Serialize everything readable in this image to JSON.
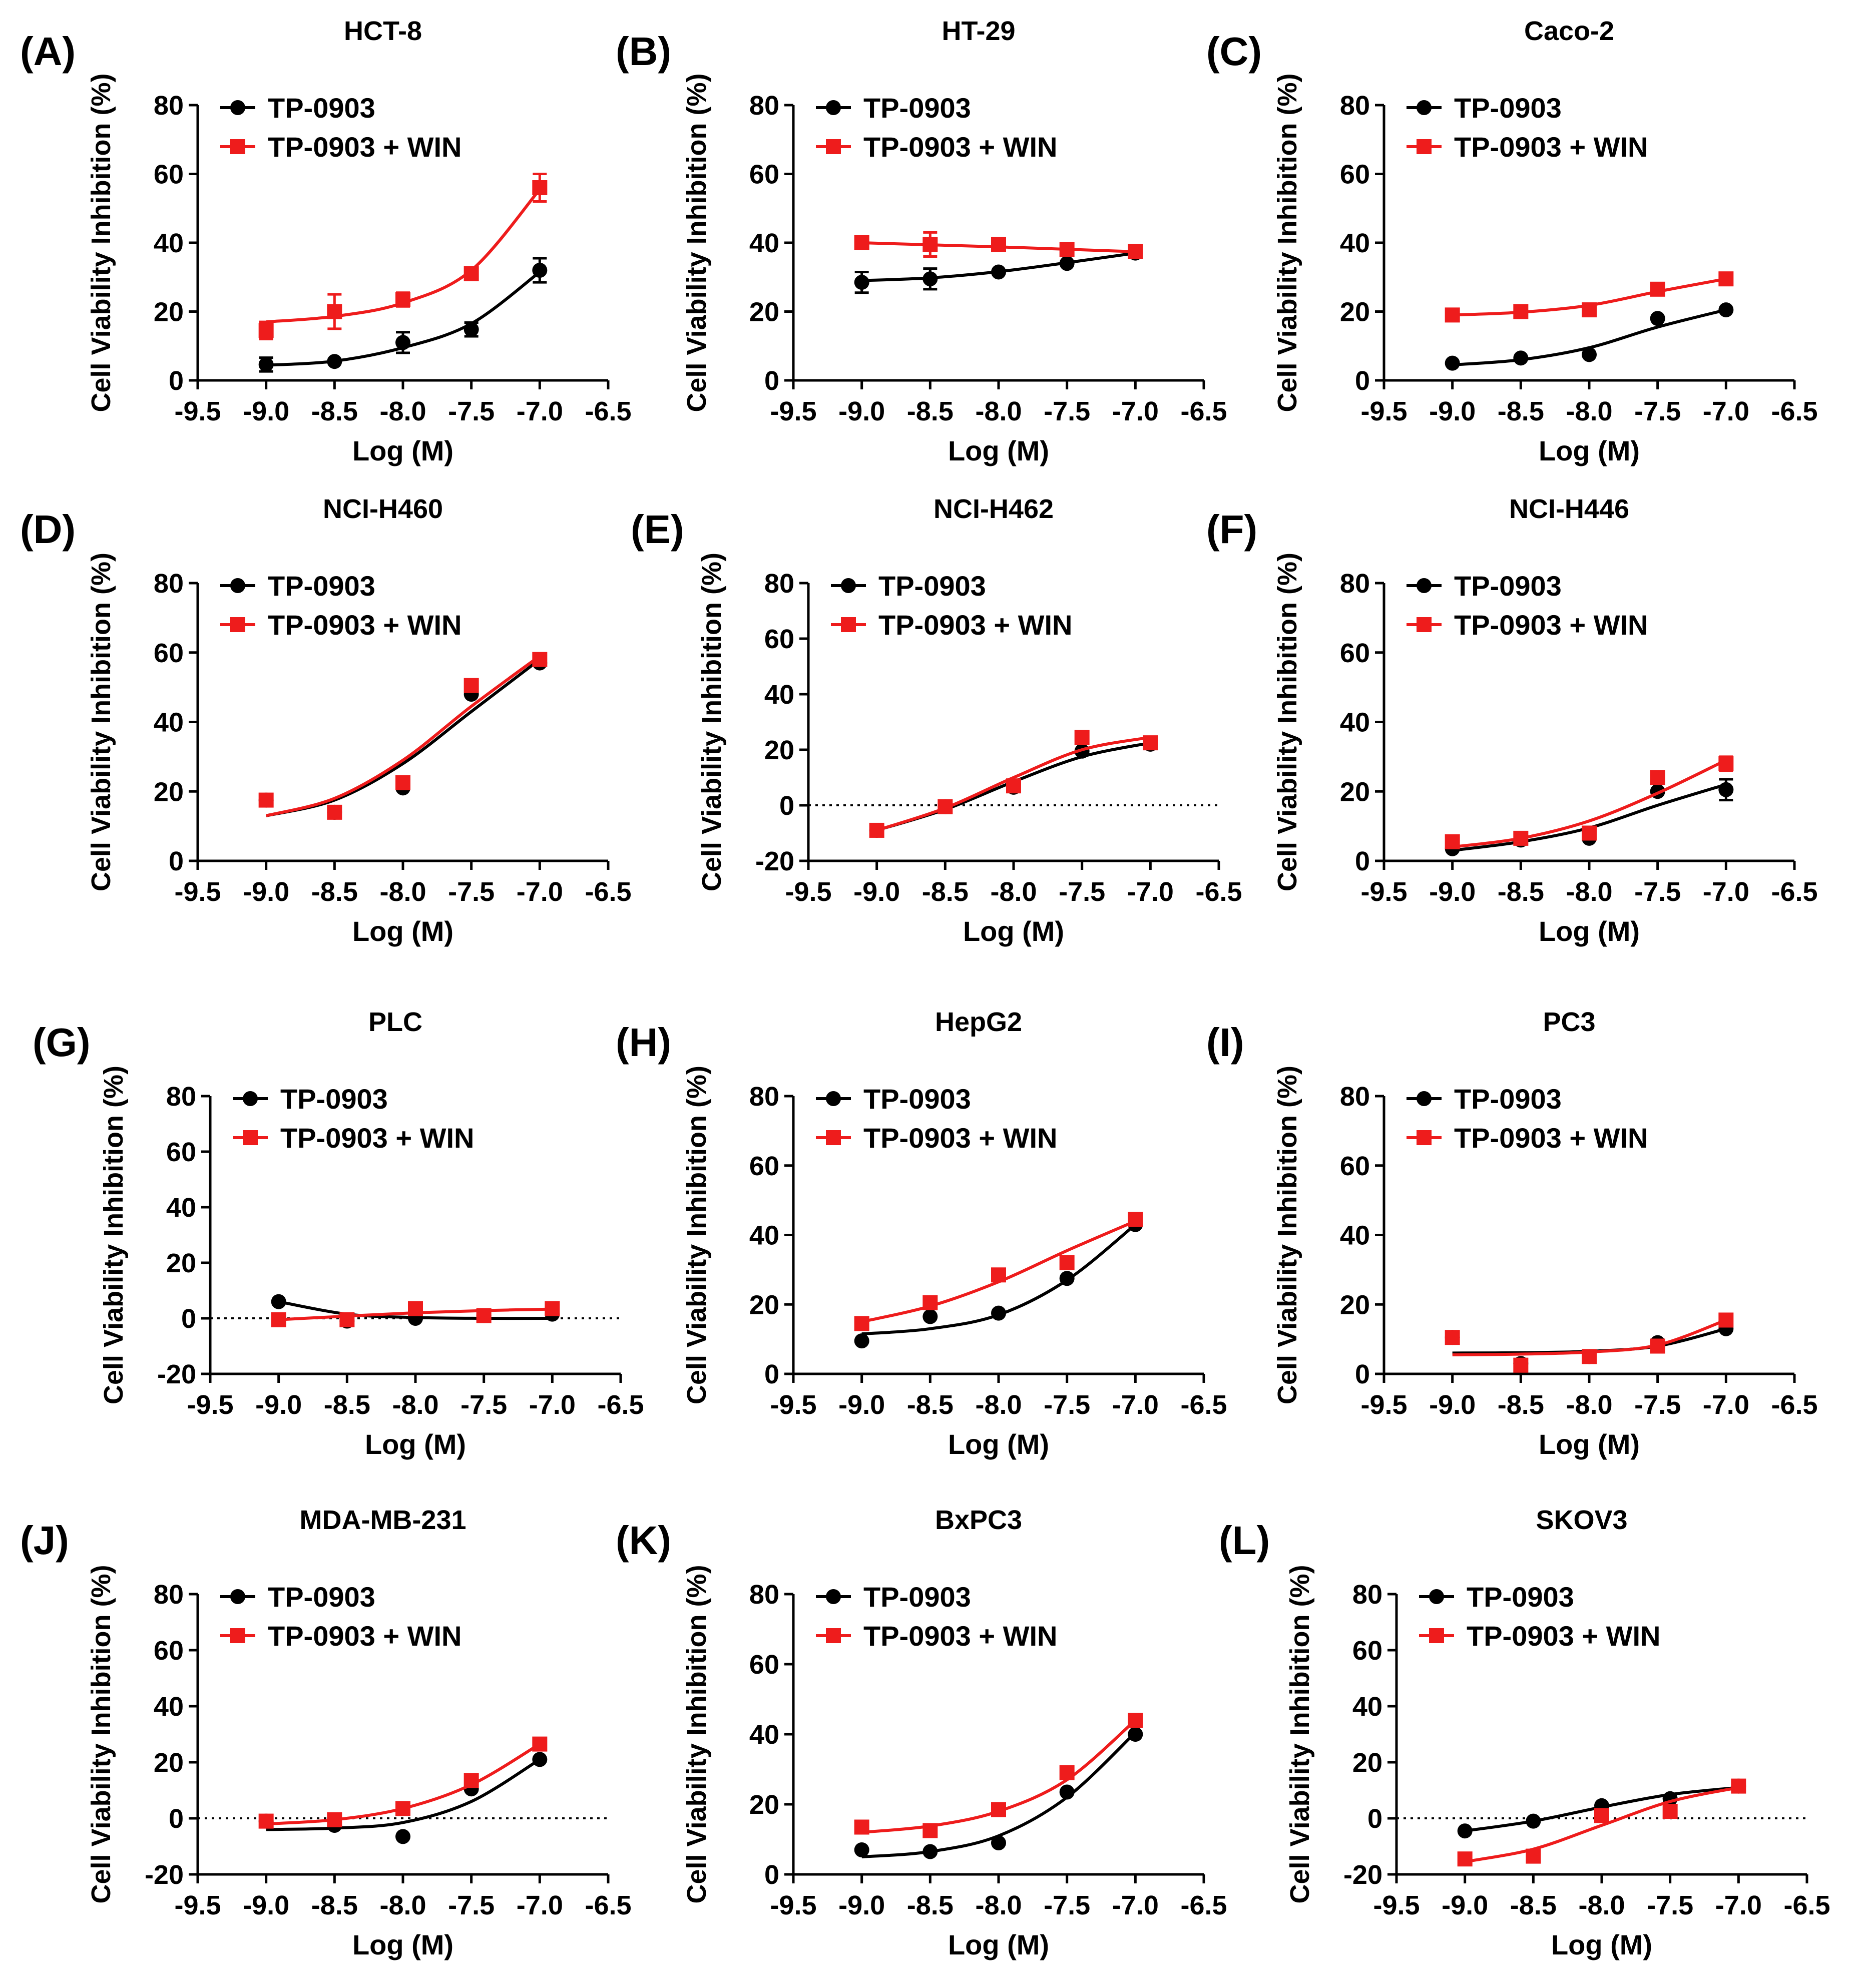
{
  "figure": {
    "x_axis_label": "Log (M)",
    "y_axis_label": "Cell Viability Inhibition (%)"
  },
  "colors": {
    "control": "#000000",
    "win": "#ee1c1c"
  },
  "chart_data": [
    {
      "type": "scatter",
      "panel_label": "(A)",
      "title": "HCT-8",
      "xlabel": "Log (M)",
      "ylabel": "Cell Viability Inhibition (%)",
      "xlim": [
        -9.5,
        -6.5
      ],
      "ylim": [
        0,
        80
      ],
      "xticks": [
        "-9.5",
        "-9.0",
        "-8.5",
        "-8.0",
        "-7.5",
        "-7.0",
        "-6.5"
      ],
      "yticks": [
        "0",
        "20",
        "40",
        "60",
        "80"
      ],
      "x": [
        -9.0,
        -8.5,
        -8.0,
        -7.5,
        -7.0
      ],
      "series": [
        {
          "name": "TP-0903",
          "values": [
            4.6,
            5.5,
            11,
            14.8,
            32
          ],
          "errors": [
            2,
            0.5,
            3,
            2,
            3.5
          ],
          "fit": [
            4.4,
            5.6,
            9.5,
            16.5,
            31.5
          ]
        },
        {
          "name": "TP-0903 + WIN",
          "values": [
            14.5,
            20,
            23.5,
            31,
            56
          ],
          "errors": [
            2.5,
            5,
            2,
            1.5,
            4
          ],
          "fit": [
            17,
            18.6,
            22.5,
            32,
            55.5
          ]
        }
      ],
      "zero_line": false,
      "legend_position": "top-left"
    },
    {
      "type": "scatter",
      "panel_label": "(B)",
      "title": "HT-29",
      "xlabel": "Log (M)",
      "ylabel": "Cell Viability Inhibition (%)",
      "xlim": [
        -9.5,
        -6.5
      ],
      "ylim": [
        0,
        80
      ],
      "xticks": [
        "-9.5",
        "-9.0",
        "-8.5",
        "-8.0",
        "-7.5",
        "-7.0",
        "-6.5"
      ],
      "yticks": [
        "0",
        "20",
        "40",
        "60",
        "80"
      ],
      "x": [
        -9.0,
        -8.5,
        -8.0,
        -7.5,
        -7.0
      ],
      "series": [
        {
          "name": "TP-0903",
          "values": [
            28.5,
            29.5,
            31.5,
            34,
            37
          ],
          "errors": [
            3,
            3,
            1,
            1,
            1
          ],
          "fit": [
            29,
            29.8,
            31.6,
            34.2,
            37
          ]
        },
        {
          "name": "TP-0903 + WIN",
          "values": [
            40,
            39.5,
            39.5,
            38,
            37.5
          ],
          "errors": [
            1,
            3.5,
            1,
            1,
            1
          ],
          "fit": [
            40,
            39.4,
            38.8,
            38.1,
            37.4
          ]
        }
      ],
      "zero_line": false,
      "legend_position": "top-left"
    },
    {
      "type": "scatter",
      "panel_label": "(C)",
      "title": "Caco-2",
      "xlabel": "Log (M)",
      "ylabel": "Cell Viability Inhibition (%)",
      "xlim": [
        -9.5,
        -6.5
      ],
      "ylim": [
        0,
        80
      ],
      "xticks": [
        "-9.5",
        "-9.0",
        "-8.5",
        "-8.0",
        "-7.5",
        "-7.0",
        "-6.5"
      ],
      "yticks": [
        "0",
        "20",
        "40",
        "60",
        "80"
      ],
      "x": [
        -9.0,
        -8.5,
        -8.0,
        -7.5,
        -7.0
      ],
      "series": [
        {
          "name": "TP-0903",
          "values": [
            5,
            6.5,
            7.5,
            18,
            20.5
          ],
          "errors": [
            0.5,
            0.5,
            0.5,
            0.8,
            0.8
          ],
          "fit": [
            4.5,
            6,
            9.5,
            15.5,
            20.5
          ]
        },
        {
          "name": "TP-0903 + WIN",
          "values": [
            19,
            20,
            20.5,
            26.5,
            29.5
          ],
          "errors": [
            0.5,
            0.5,
            0.5,
            0.8,
            0.8
          ],
          "fit": [
            19,
            19.8,
            21.8,
            25.8,
            29.5
          ]
        }
      ],
      "zero_line": false,
      "legend_position": "top-left"
    },
    {
      "type": "scatter",
      "panel_label": "(D)",
      "title": "NCI-H460",
      "xlabel": "Log (M)",
      "ylabel": "Cell Viability Inhibition (%)",
      "xlim": [
        -9.5,
        -6.5
      ],
      "ylim": [
        0,
        80
      ],
      "xticks": [
        "-9.5",
        "-9.0",
        "-8.5",
        "-8.0",
        "-7.5",
        "-7.0",
        "-6.5"
      ],
      "yticks": [
        "0",
        "20",
        "40",
        "60",
        "80"
      ],
      "x": [
        -9.0,
        -8.5,
        -8.0,
        -7.5,
        -7.0
      ],
      "series": [
        {
          "name": "TP-0903",
          "values": [
            17.5,
            14,
            21,
            48,
            57
          ],
          "errors": [
            1,
            1,
            1,
            1,
            1
          ],
          "fit": [
            13,
            17.5,
            28,
            43,
            58
          ]
        },
        {
          "name": "TP-0903 + WIN",
          "values": [
            17.5,
            14,
            22.5,
            50.5,
            58
          ],
          "errors": [
            1,
            1,
            1,
            1,
            1
          ],
          "fit": [
            13,
            18,
            29,
            44.5,
            59
          ]
        }
      ],
      "zero_line": false,
      "legend_position": "top-left"
    },
    {
      "type": "scatter",
      "panel_label": "(E)",
      "title": "NCI-H462",
      "xlabel": "Log (M)",
      "ylabel": "Cell Viability Inhibition (%)",
      "xlim": [
        -9.5,
        -6.5
      ],
      "ylim": [
        -20,
        80
      ],
      "xticks": [
        "-9.5",
        "-9.0",
        "-8.5",
        "-8.0",
        "-7.5",
        "-7.0",
        "-6.5"
      ],
      "yticks": [
        "-20",
        "0",
        "20",
        "40",
        "60",
        "80"
      ],
      "x": [
        -9.0,
        -8.5,
        -8.0,
        -7.5,
        -7.0
      ],
      "series": [
        {
          "name": "TP-0903",
          "values": [
            -9,
            -0.5,
            6.5,
            19.5,
            22
          ],
          "errors": [
            1,
            1,
            1,
            1,
            1
          ],
          "fit": [
            -9,
            -1.5,
            8.5,
            17.5,
            22.5
          ]
        },
        {
          "name": "TP-0903 + WIN",
          "values": [
            -9,
            -0.5,
            7,
            24.5,
            22.5
          ],
          "errors": [
            1,
            1,
            1,
            1,
            1
          ],
          "fit": [
            -9,
            -1,
            10,
            20,
            24.5
          ]
        }
      ],
      "zero_line": true,
      "legend_position": "top-left"
    },
    {
      "type": "scatter",
      "panel_label": "(F)",
      "title": "NCI-H446",
      "xlabel": "Log (M)",
      "ylabel": "Cell Viability Inhibition (%)",
      "xlim": [
        -9.5,
        -6.5
      ],
      "ylim": [
        0,
        80
      ],
      "xticks": [
        "-9.5",
        "-9.0",
        "-8.5",
        "-8.0",
        "-7.5",
        "-7.0",
        "-6.5"
      ],
      "yticks": [
        "0",
        "20",
        "40",
        "60",
        "80"
      ],
      "x": [
        -9.0,
        -8.5,
        -8.0,
        -7.5,
        -7.0
      ],
      "series": [
        {
          "name": "TP-0903",
          "values": [
            3.5,
            6,
            6.5,
            20,
            20.5
          ],
          "errors": [
            1,
            1,
            1,
            1,
            3
          ],
          "fit": [
            3,
            5.5,
            9.5,
            16,
            22
          ]
        },
        {
          "name": "TP-0903 + WIN",
          "values": [
            5.5,
            6.5,
            8,
            24,
            28
          ],
          "errors": [
            1,
            1,
            1,
            1,
            2
          ],
          "fit": [
            4,
            6.5,
            11.5,
            19.5,
            29
          ]
        }
      ],
      "zero_line": false,
      "legend_position": "top-left"
    },
    {
      "type": "scatter",
      "panel_label": "(G)",
      "title": "PLC",
      "xlabel": "Log (M)",
      "ylabel": "Cell Viability Inhibition (%)",
      "xlim": [
        -9.5,
        -6.5
      ],
      "ylim": [
        -20,
        80
      ],
      "xticks": [
        "-9.5",
        "-9.0",
        "-8.5",
        "-8.0",
        "-7.5",
        "-7.0",
        "-6.5"
      ],
      "yticks": [
        "-20",
        "0",
        "20",
        "40",
        "60",
        "80"
      ],
      "x": [
        -9.0,
        -8.5,
        -8.0,
        -7.5,
        -7.0
      ],
      "series": [
        {
          "name": "TP-0903",
          "values": [
            6,
            -1,
            0,
            1,
            1.5
          ],
          "errors": [
            0.8,
            0.8,
            0.8,
            0.8,
            0.8
          ],
          "fit": [
            6,
            1.5,
            0.3,
            0,
            0
          ]
        },
        {
          "name": "TP-0903 + WIN",
          "values": [
            -0.5,
            -0.5,
            3.5,
            1,
            3.5
          ],
          "errors": [
            0.8,
            0.8,
            0.8,
            0.8,
            0.8
          ],
          "fit": [
            -0.5,
            0.8,
            2,
            2.8,
            3.3
          ]
        }
      ],
      "zero_line": true,
      "legend_position": "top-left"
    },
    {
      "type": "scatter",
      "panel_label": "(H)",
      "title": "HepG2",
      "xlabel": "Log (M)",
      "ylabel": "Cell Viability Inhibition (%)",
      "xlim": [
        -9.5,
        -6.5
      ],
      "ylim": [
        0,
        80
      ],
      "xticks": [
        "-9.5",
        "-9.0",
        "-8.5",
        "-8.0",
        "-7.5",
        "-7.0",
        "-6.5"
      ],
      "yticks": [
        "0",
        "20",
        "40",
        "60",
        "80"
      ],
      "x": [
        -9.0,
        -8.5,
        -8.0,
        -7.5,
        -7.0
      ],
      "series": [
        {
          "name": "TP-0903",
          "values": [
            9.5,
            16.5,
            17.5,
            27.5,
            43
          ],
          "errors": [
            1,
            1,
            1,
            1,
            1
          ],
          "fit": [
            11.5,
            13,
            17,
            27,
            43
          ]
        },
        {
          "name": "TP-0903 + WIN",
          "values": [
            14.5,
            20.5,
            28.5,
            32,
            44.5
          ],
          "errors": [
            1,
            1,
            1,
            1,
            1
          ],
          "fit": [
            15,
            19.5,
            26.5,
            35.5,
            44
          ]
        }
      ],
      "zero_line": false,
      "legend_position": "top-left"
    },
    {
      "type": "scatter",
      "panel_label": "(I)",
      "title": "PC3",
      "xlabel": "Log (M)",
      "ylabel": "Cell Viability Inhibition (%)",
      "xlim": [
        -9.5,
        -6.5
      ],
      "ylim": [
        0,
        80
      ],
      "xticks": [
        "-9.5",
        "-9.0",
        "-8.5",
        "-8.0",
        "-7.5",
        "-7.0",
        "-6.5"
      ],
      "yticks": [
        "0",
        "20",
        "40",
        "60",
        "80"
      ],
      "x": [
        -9.0,
        -8.5,
        -8.0,
        -7.5,
        -7.0
      ],
      "series": [
        {
          "name": "TP-0903",
          "values": [
            10.5,
            3,
            5,
            9,
            13
          ],
          "errors": [
            1,
            1,
            1,
            1,
            1
          ],
          "fit": [
            6,
            6.1,
            6.5,
            8,
            13
          ]
        },
        {
          "name": "TP-0903 + WIN",
          "values": [
            10.5,
            2.5,
            5,
            8,
            15.5
          ],
          "errors": [
            1,
            1,
            1,
            1,
            1
          ],
          "fit": [
            5.5,
            5.7,
            6.3,
            8.3,
            15.5
          ]
        }
      ],
      "zero_line": false,
      "legend_position": "top-left"
    },
    {
      "type": "scatter",
      "panel_label": "(J)",
      "title": "MDA-MB-231",
      "xlabel": "Log (M)",
      "ylabel": "Cell Viability Inhibition (%)",
      "xlim": [
        -9.5,
        -6.5
      ],
      "ylim": [
        -20,
        80
      ],
      "xticks": [
        "-9.5",
        "-9.0",
        "-8.5",
        "-8.0",
        "-7.5",
        "-7.0",
        "-6.5"
      ],
      "yticks": [
        "-20",
        "0",
        "20",
        "40",
        "60",
        "80"
      ],
      "x": [
        -9.0,
        -8.5,
        -8.0,
        -7.5,
        -7.0
      ],
      "series": [
        {
          "name": "TP-0903",
          "values": [
            -1,
            -2.5,
            -6.5,
            10.5,
            21
          ],
          "errors": [
            0.8,
            0.8,
            0.8,
            0.8,
            0.8
          ],
          "fit": [
            -4,
            -3.5,
            -1.5,
            6,
            21
          ]
        },
        {
          "name": "TP-0903 + WIN",
          "values": [
            -1,
            -0.5,
            3.5,
            13.5,
            26.5
          ],
          "errors": [
            0.8,
            0.8,
            0.8,
            0.8,
            0.8
          ],
          "fit": [
            -2,
            -0.5,
            3.5,
            12,
            26.5
          ]
        }
      ],
      "zero_line": true,
      "legend_position": "top-left"
    },
    {
      "type": "scatter",
      "panel_label": "(K)",
      "title": "BxPC3",
      "xlabel": "Log (M)",
      "ylabel": "Cell Viability Inhibition (%)",
      "xlim": [
        -9.5,
        -6.5
      ],
      "ylim": [
        0,
        80
      ],
      "xticks": [
        "-9.5",
        "-9.0",
        "-8.5",
        "-8.0",
        "-7.5",
        "-7.0",
        "-6.5"
      ],
      "yticks": [
        "0",
        "20",
        "40",
        "60",
        "80"
      ],
      "x": [
        -9.0,
        -8.5,
        -8.0,
        -7.5,
        -7.0
      ],
      "series": [
        {
          "name": "TP-0903",
          "values": [
            7,
            6.5,
            9,
            23.5,
            40
          ],
          "errors": [
            0.8,
            0.8,
            0.8,
            0.8,
            0.8
          ],
          "fit": [
            5,
            6.5,
            11,
            22,
            40.5
          ]
        },
        {
          "name": "TP-0903 + WIN",
          "values": [
            13.5,
            12.5,
            18.5,
            29,
            44
          ],
          "errors": [
            0.8,
            0.8,
            0.8,
            0.8,
            0.8
          ],
          "fit": [
            12,
            13.8,
            18,
            27,
            44
          ]
        }
      ],
      "zero_line": false,
      "legend_position": "top-left"
    },
    {
      "type": "scatter",
      "panel_label": "(L)",
      "title": "SKOV3",
      "xlabel": "Log (M)",
      "ylabel": "Cell Viability Inhibition (%)",
      "xlim": [
        -9.5,
        -6.5
      ],
      "ylim": [
        -20,
        80
      ],
      "xticks": [
        "-9.5",
        "-9.0",
        "-8.5",
        "-8.0",
        "-7.5",
        "-7.0",
        "-6.5"
      ],
      "yticks": [
        "-20",
        "0",
        "20",
        "40",
        "60",
        "80"
      ],
      "x": [
        -9.0,
        -8.5,
        -8.0,
        -7.5,
        -7.0
      ],
      "series": [
        {
          "name": "TP-0903",
          "values": [
            -4.5,
            -1,
            4.5,
            7,
            11.5
          ],
          "errors": [
            0.8,
            0.8,
            0.8,
            0.8,
            0.8
          ],
          "fit": [
            -4.5,
            -1,
            4,
            8.5,
            11
          ]
        },
        {
          "name": "TP-0903 + WIN",
          "values": [
            -14.5,
            -13.5,
            1,
            2.5,
            11.5
          ],
          "errors": [
            0.8,
            0.8,
            0.8,
            0.8,
            0.8
          ],
          "fit": [
            -15.5,
            -11,
            -2.5,
            6,
            11
          ]
        }
      ],
      "zero_line": true,
      "legend_position": "top-left"
    }
  ]
}
